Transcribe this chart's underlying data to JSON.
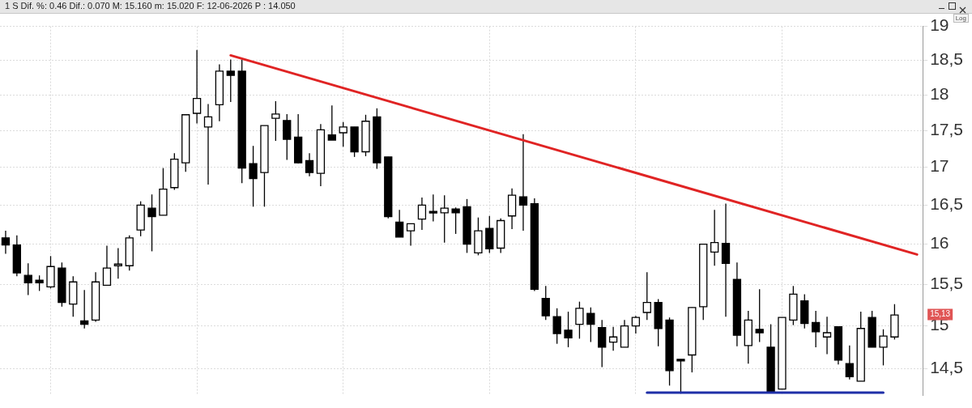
{
  "chart_data": {
    "type": "candlestick",
    "title": "1 S Dif. %: 0.46 Dif.: 0.070 M: 15.160 m: 15.020 F: 12-06-2026 P : 14.050",
    "categories": [
      null,
      null,
      null,
      null,
      null,
      null,
      null,
      null,
      null,
      null,
      null,
      null,
      null,
      null,
      null,
      null,
      null,
      null,
      null,
      null,
      null,
      null,
      null,
      null,
      null,
      null,
      null,
      null,
      null,
      null,
      null,
      null,
      null,
      null,
      null,
      null,
      null,
      null,
      null,
      null,
      null,
      null,
      null,
      null,
      null,
      null,
      null,
      null,
      null,
      null,
      null,
      null,
      null,
      null,
      null,
      null,
      null,
      null,
      null,
      null,
      null,
      null,
      null,
      null,
      null,
      null,
      null,
      null,
      null,
      null,
      null,
      null,
      null,
      null,
      null,
      null,
      null,
      null,
      null,
      null,
      null,
      null
    ],
    "ohlc": [
      [
        16.08,
        16.17,
        15.88,
        15.99
      ],
      [
        15.99,
        16.11,
        15.6,
        15.64
      ],
      [
        15.61,
        15.76,
        15.37,
        15.52
      ],
      [
        15.55,
        15.61,
        15.42,
        15.52
      ],
      [
        15.47,
        15.85,
        15.45,
        15.72
      ],
      [
        15.7,
        15.77,
        15.23,
        15.28
      ],
      [
        15.26,
        15.6,
        15.11,
        15.53
      ],
      [
        15.06,
        15.43,
        14.97,
        15.02
      ],
      [
        15.07,
        15.65,
        15.05,
        15.53
      ],
      [
        15.49,
        15.98,
        15.49,
        15.7
      ],
      [
        15.73,
        15.95,
        15.57,
        15.75
      ],
      [
        15.73,
        16.11,
        15.67,
        16.08
      ],
      [
        16.18,
        16.55,
        16.1,
        16.5
      ],
      [
        16.46,
        16.64,
        15.91,
        16.35
      ],
      [
        16.37,
        16.99,
        16.37,
        16.71
      ],
      [
        16.73,
        17.19,
        16.7,
        17.11
      ],
      [
        17.06,
        17.72,
        16.94,
        17.72
      ],
      [
        17.74,
        18.65,
        17.6,
        17.95
      ],
      [
        17.55,
        17.87,
        16.77,
        17.69
      ],
      [
        17.86,
        18.44,
        17.63,
        18.34
      ],
      [
        18.34,
        18.51,
        17.9,
        18.28
      ],
      [
        18.34,
        18.51,
        16.79,
        16.99
      ],
      [
        17.05,
        17.29,
        16.48,
        16.85
      ],
      [
        16.93,
        17.57,
        16.48,
        17.57
      ],
      [
        17.67,
        17.91,
        17.36,
        17.73
      ],
      [
        17.64,
        17.73,
        17.1,
        17.38
      ],
      [
        17.41,
        17.73,
        17.05,
        17.06
      ],
      [
        17.09,
        17.19,
        16.88,
        16.93
      ],
      [
        16.92,
        17.59,
        16.75,
        17.51
      ],
      [
        17.44,
        17.85,
        17.37,
        17.37
      ],
      [
        17.47,
        17.62,
        17.28,
        17.55
      ],
      [
        17.55,
        17.55,
        17.14,
        17.21
      ],
      [
        17.21,
        17.72,
        17.15,
        17.63
      ],
      [
        17.69,
        17.81,
        16.98,
        17.06
      ],
      [
        17.14,
        17.14,
        16.33,
        16.35
      ],
      [
        16.28,
        16.44,
        16.09,
        16.09
      ],
      [
        16.17,
        16.26,
        15.98,
        16.26
      ],
      [
        16.32,
        16.6,
        16.18,
        16.5
      ],
      [
        16.42,
        16.64,
        16.29,
        16.4
      ],
      [
        16.4,
        16.63,
        16.02,
        16.46
      ],
      [
        16.45,
        16.47,
        16.13,
        16.4
      ],
      [
        16.48,
        16.58,
        15.89,
        16.0
      ],
      [
        15.89,
        16.34,
        15.86,
        16.17
      ],
      [
        16.2,
        16.36,
        15.89,
        15.94
      ],
      [
        15.95,
        16.33,
        15.89,
        16.3
      ],
      [
        16.36,
        16.72,
        16.19,
        16.63
      ],
      [
        16.61,
        17.45,
        16.17,
        16.5
      ],
      [
        16.52,
        16.59,
        15.42,
        15.44
      ],
      [
        15.33,
        15.48,
        15.07,
        15.12
      ],
      [
        15.11,
        15.21,
        14.79,
        14.91
      ],
      [
        14.95,
        15.17,
        14.75,
        14.86
      ],
      [
        15.02,
        15.29,
        14.85,
        15.21
      ],
      [
        15.15,
        15.22,
        14.81,
        15.02
      ],
      [
        14.98,
        15.07,
        14.52,
        14.75
      ],
      [
        14.81,
        14.99,
        14.71,
        14.87
      ],
      [
        14.75,
        15.07,
        14.75,
        15.0
      ],
      [
        15.0,
        15.12,
        14.91,
        15.1
      ],
      [
        15.16,
        15.65,
        15.07,
        15.28
      ],
      [
        15.28,
        15.32,
        14.76,
        14.97
      ],
      [
        15.07,
        15.1,
        14.31,
        14.48
      ],
      [
        14.61,
        14.61,
        14.22,
        14.6
      ],
      [
        14.66,
        15.22,
        14.46,
        15.22
      ],
      [
        15.23,
        16.0,
        15.07,
        16.0
      ],
      [
        15.9,
        16.44,
        15.73,
        16.02
      ],
      [
        16.01,
        16.52,
        15.11,
        15.76
      ],
      [
        15.56,
        15.77,
        14.76,
        14.89
      ],
      [
        14.77,
        15.18,
        14.56,
        15.07
      ],
      [
        14.96,
        15.44,
        14.81,
        14.92
      ],
      [
        14.75,
        15.02,
        14.24,
        14.24
      ],
      [
        14.27,
        15.1,
        14.27,
        15.1
      ],
      [
        15.07,
        15.48,
        15.01,
        15.38
      ],
      [
        15.3,
        15.38,
        14.97,
        15.03
      ],
      [
        15.04,
        15.18,
        14.75,
        14.93
      ],
      [
        14.87,
        15.11,
        14.67,
        14.92
      ],
      [
        14.99,
        14.99,
        14.55,
        14.6
      ],
      [
        14.56,
        14.77,
        14.38,
        14.41
      ],
      [
        14.36,
        15.17,
        14.36,
        14.97
      ],
      [
        15.1,
        15.18,
        14.75,
        14.75
      ],
      [
        14.75,
        14.96,
        14.54,
        14.88
      ],
      [
        14.87,
        15.26,
        14.84,
        15.13
      ],
      null,
      null
    ],
    "series": [
      {
        "type": "line",
        "color": "#e02424",
        "values": [
          null,
          null,
          null,
          null,
          null,
          null,
          null,
          null,
          null,
          null,
          null,
          null,
          null,
          null,
          null,
          null,
          null,
          null,
          null,
          null,
          18.57,
          null,
          null,
          null,
          null,
          null,
          null,
          null,
          null,
          null,
          null,
          null,
          null,
          null,
          null,
          null,
          null,
          null,
          null,
          null,
          null,
          null,
          null,
          null,
          null,
          null,
          null,
          null,
          null,
          null,
          null,
          null,
          null,
          null,
          null,
          null,
          null,
          null,
          null,
          null,
          null,
          null,
          null,
          null,
          null,
          null,
          null,
          null,
          null,
          null,
          null,
          null,
          null,
          null,
          null,
          null,
          null,
          null,
          null,
          null,
          null,
          15.87
        ]
      },
      {
        "type": "line",
        "color": "#1f2fa8",
        "values": [
          null,
          null,
          null,
          null,
          null,
          null,
          null,
          null,
          null,
          null,
          null,
          null,
          null,
          null,
          null,
          null,
          null,
          null,
          null,
          null,
          null,
          null,
          null,
          null,
          null,
          null,
          null,
          null,
          null,
          null,
          null,
          null,
          null,
          null,
          null,
          null,
          null,
          null,
          null,
          null,
          null,
          null,
          null,
          null,
          null,
          null,
          null,
          null,
          null,
          null,
          null,
          null,
          null,
          null,
          null,
          null,
          null,
          14.23,
          null,
          null,
          null,
          null,
          null,
          null,
          null,
          null,
          null,
          null,
          null,
          null,
          null,
          null,
          null,
          null,
          null,
          null,
          null,
          null,
          14.23,
          null,
          null,
          null
        ]
      }
    ],
    "ylim": [
      14.2,
      19
    ],
    "yticks": [
      {
        "value": 14.5,
        "label": "14,5"
      },
      15,
      {
        "value": 15.5,
        "label": "15,5"
      },
      16,
      {
        "value": 16.5,
        "label": "16,5"
      },
      17,
      {
        "value": 17.5,
        "label": "17,5"
      },
      18,
      {
        "value": 18.5,
        "label": "18,5"
      },
      19
    ],
    "log": "y",
    "grid": true,
    "annotations": [
      "15,13",
      "Log"
    ]
  }
}
